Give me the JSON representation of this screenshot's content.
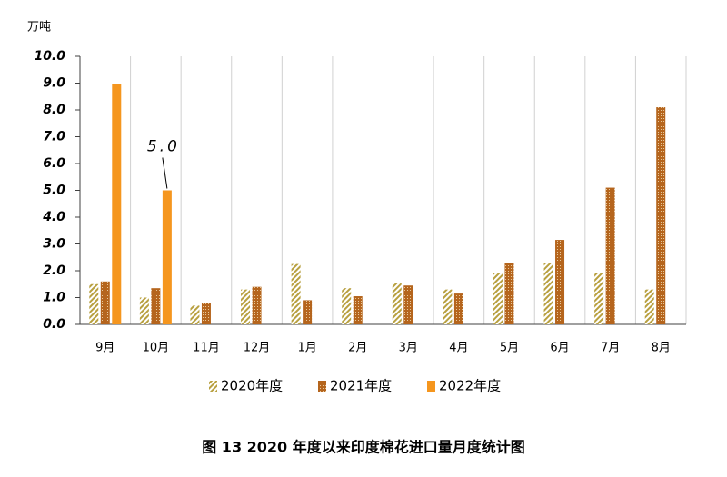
{
  "chart_data": {
    "type": "bar",
    "y_unit": "万吨",
    "caption": "图 13   2020 年度以来印度棉花进口量月度统计图",
    "categories": [
      "9月",
      "10月",
      "11月",
      "12月",
      "1月",
      "2月",
      "3月",
      "4月",
      "5月",
      "6月",
      "7月",
      "8月"
    ],
    "series": [
      {
        "name": "2020年度",
        "color": "#b8a040",
        "pattern": "hatch",
        "values": [
          1.5,
          1.0,
          0.7,
          1.3,
          2.25,
          1.35,
          1.55,
          1.3,
          1.9,
          2.3,
          1.9,
          1.3
        ]
      },
      {
        "name": "2021年度",
        "color": "#b5651d",
        "pattern": "dots",
        "values": [
          1.6,
          1.35,
          0.8,
          1.4,
          0.9,
          1.05,
          1.45,
          1.15,
          2.3,
          3.15,
          5.1,
          8.1
        ]
      },
      {
        "name": "2022年度",
        "color": "#f5961e",
        "pattern": "solid",
        "values": [
          8.95,
          5.0,
          null,
          null,
          null,
          null,
          null,
          null,
          null,
          null,
          null,
          null
        ],
        "value_labels": [
          null,
          "5.0",
          null,
          null,
          null,
          null,
          null,
          null,
          null,
          null,
          null,
          null
        ]
      }
    ],
    "ylim": [
      0,
      10
    ],
    "yticks": [
      {
        "value": 0,
        "label": "0.0"
      },
      {
        "value": 1,
        "label": "1.0"
      },
      {
        "value": 2,
        "label": "2.0"
      },
      {
        "value": 3,
        "label": "3.0"
      },
      {
        "value": 4,
        "label": "4.0"
      },
      {
        "value": 5,
        "label": "5.0"
      },
      {
        "value": 6,
        "label": "6.0"
      },
      {
        "value": 7,
        "label": "7.0"
      },
      {
        "value": 8,
        "label": "8.0"
      },
      {
        "value": 9,
        "label": "9.0"
      },
      {
        "value": 10,
        "label": "10.0"
      }
    ],
    "legend": "bottom"
  }
}
